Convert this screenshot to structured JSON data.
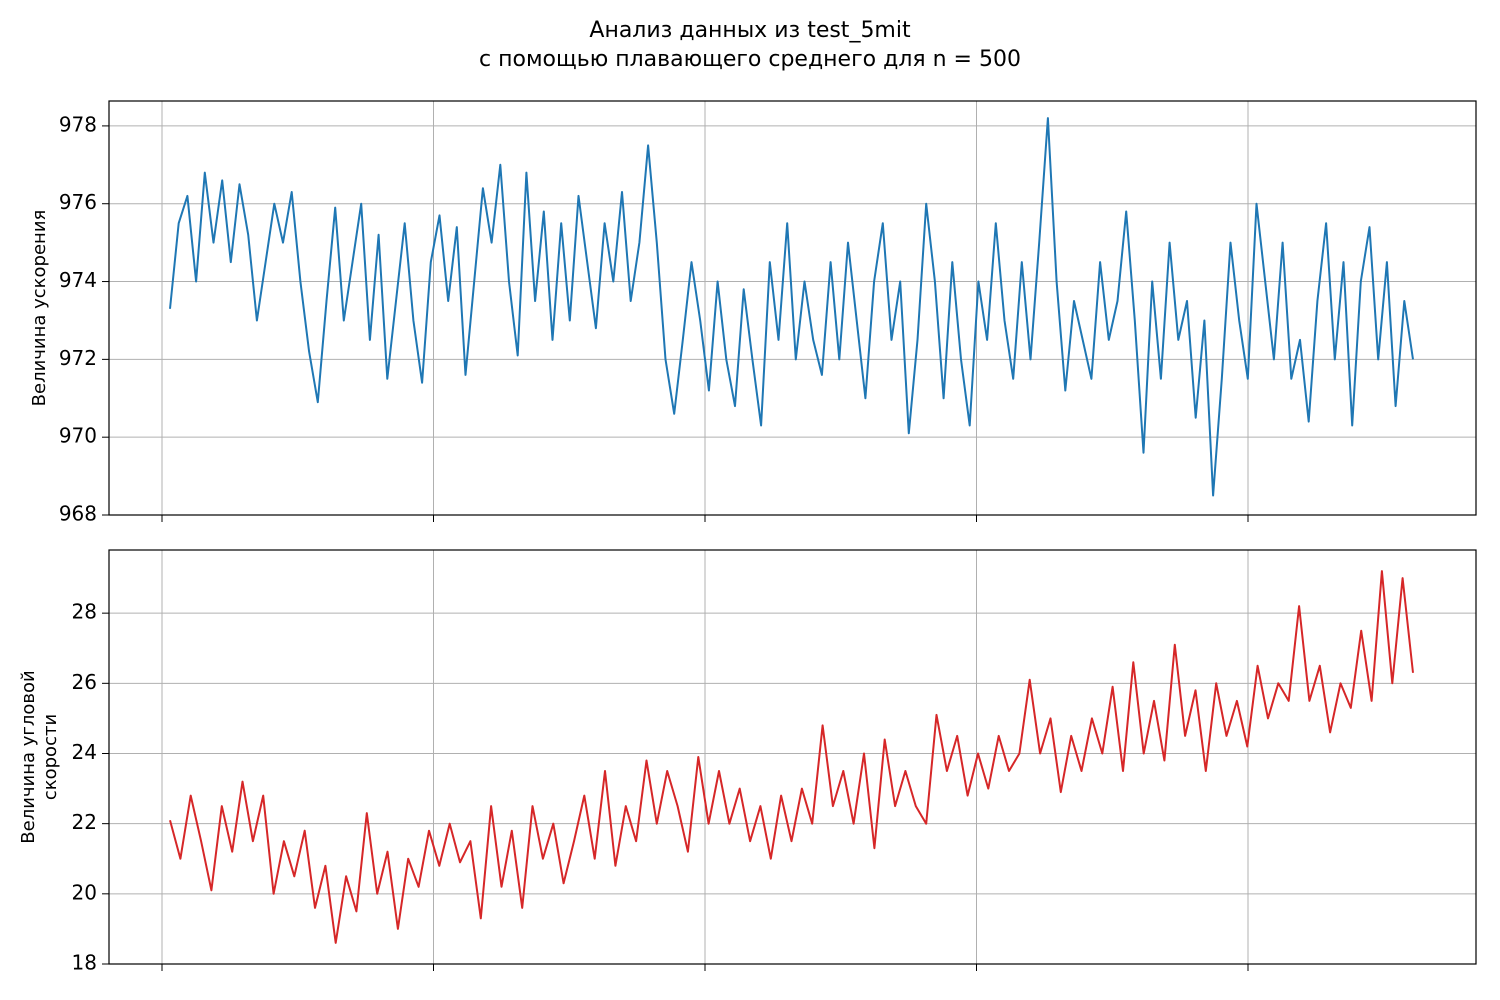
{
  "title": [
    "Анализ данных из test_5mit",
    "с помощью плавающего среднего для n = 500"
  ],
  "chart_data": [
    {
      "type": "line",
      "ylabel": [
        "Величина ускорения"
      ],
      "grid": true,
      "ylim": [
        968,
        978.64
      ],
      "yticks": [
        968,
        970,
        972,
        974,
        976,
        978
      ],
      "series": [
        {
          "color": "#1f77b4",
          "values": [
            973.3,
            975.5,
            976.2,
            974.0,
            976.8,
            975.0,
            976.6,
            974.5,
            976.5,
            975.2,
            973.0,
            974.5,
            976.0,
            975.0,
            976.3,
            974.0,
            972.2,
            970.9,
            973.5,
            975.9,
            973.0,
            974.5,
            976.0,
            972.5,
            975.2,
            971.5,
            973.5,
            975.5,
            973.0,
            971.4,
            974.5,
            975.7,
            973.5,
            975.4,
            971.6,
            974.0,
            976.4,
            975.0,
            977.0,
            974.0,
            972.1,
            976.8,
            973.5,
            975.8,
            972.5,
            975.5,
            973.0,
            976.2,
            974.5,
            972.8,
            975.5,
            974.0,
            976.3,
            973.5,
            975.0,
            977.5,
            975.0,
            972.0,
            970.6,
            972.5,
            974.5,
            973.0,
            971.2,
            974.0,
            972.0,
            970.8,
            973.8,
            972.0,
            970.3,
            974.5,
            972.5,
            975.5,
            972.0,
            974.0,
            972.5,
            971.6,
            974.5,
            972.0,
            975.0,
            973.0,
            971.0,
            974.0,
            975.5,
            972.5,
            974.0,
            970.1,
            972.5,
            976.0,
            974.0,
            971.0,
            974.5,
            972.0,
            970.3,
            974.0,
            972.5,
            975.5,
            973.0,
            971.5,
            974.5,
            972.0,
            975.0,
            978.2,
            974.0,
            971.2,
            973.5,
            972.5,
            971.5,
            974.5,
            972.5,
            973.5,
            975.8,
            973.0,
            969.6,
            974.0,
            971.5,
            975.0,
            972.5,
            973.5,
            970.5,
            973.0,
            968.5,
            971.5,
            975.0,
            973.0,
            971.5,
            976.0,
            974.0,
            972.0,
            975.0,
            971.5,
            972.5,
            970.4,
            973.5,
            975.5,
            972.0,
            974.5,
            970.3,
            974.0,
            975.4,
            972.0,
            974.5,
            970.8,
            973.5,
            972.0
          ]
        }
      ]
    },
    {
      "type": "line",
      "ylabel": [
        "Величина угловой",
        "скорости"
      ],
      "grid": true,
      "ylim": [
        18,
        29.8
      ],
      "yticks": [
        18,
        20,
        22,
        24,
        26,
        28
      ],
      "series": [
        {
          "color": "#d62728",
          "values": [
            22.1,
            21.0,
            22.8,
            21.5,
            20.1,
            22.5,
            21.2,
            23.2,
            21.5,
            22.8,
            20.0,
            21.5,
            20.5,
            21.8,
            19.6,
            20.8,
            18.6,
            20.5,
            19.5,
            22.3,
            20.0,
            21.2,
            19.0,
            21.0,
            20.2,
            21.8,
            20.8,
            22.0,
            20.9,
            21.5,
            19.3,
            22.5,
            20.2,
            21.8,
            19.6,
            22.5,
            21.0,
            22.0,
            20.3,
            21.5,
            22.8,
            21.0,
            23.5,
            20.8,
            22.5,
            21.5,
            23.8,
            22.0,
            23.5,
            22.5,
            21.2,
            23.9,
            22.0,
            23.5,
            22.0,
            23.0,
            21.5,
            22.5,
            21.0,
            22.8,
            21.5,
            23.0,
            22.0,
            24.8,
            22.5,
            23.5,
            22.0,
            24.0,
            21.3,
            24.4,
            22.5,
            23.5,
            22.5,
            22.0,
            25.1,
            23.5,
            24.5,
            22.8,
            24.0,
            23.0,
            24.5,
            23.5,
            24.0,
            26.1,
            24.0,
            25.0,
            22.9,
            24.5,
            23.5,
            25.0,
            24.0,
            25.9,
            23.5,
            26.6,
            24.0,
            25.5,
            23.8,
            27.1,
            24.5,
            25.8,
            23.5,
            26.0,
            24.5,
            25.5,
            24.2,
            26.5,
            25.0,
            26.0,
            25.5,
            28.2,
            25.5,
            26.5,
            24.6,
            26.0,
            25.3,
            27.5,
            25.5,
            29.2,
            26.0,
            29.0,
            26.3
          ]
        }
      ]
    }
  ]
}
